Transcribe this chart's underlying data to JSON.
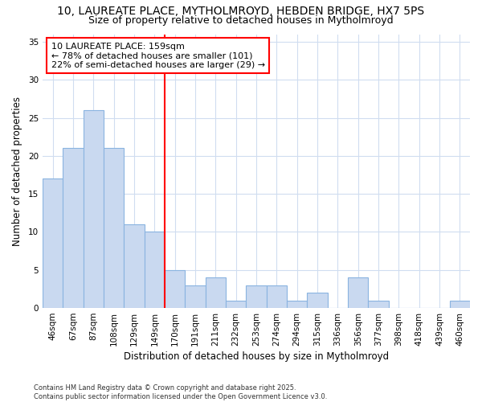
{
  "title1": "10, LAUREATE PLACE, MYTHOLMROYD, HEBDEN BRIDGE, HX7 5PS",
  "title2": "Size of property relative to detached houses in Mytholmroyd",
  "xlabel": "Distribution of detached houses by size in Mytholmroyd",
  "ylabel": "Number of detached properties",
  "footer": "Contains HM Land Registry data © Crown copyright and database right 2025.\nContains public sector information licensed under the Open Government Licence v3.0.",
  "bin_labels": [
    "46sqm",
    "67sqm",
    "87sqm",
    "108sqm",
    "129sqm",
    "149sqm",
    "170sqm",
    "191sqm",
    "211sqm",
    "232sqm",
    "253sqm",
    "274sqm",
    "294sqm",
    "315sqm",
    "336sqm",
    "356sqm",
    "377sqm",
    "398sqm",
    "418sqm",
    "439sqm",
    "460sqm"
  ],
  "bar_values": [
    17,
    21,
    26,
    21,
    11,
    10,
    5,
    3,
    4,
    1,
    3,
    3,
    1,
    2,
    0,
    4,
    1,
    0,
    0,
    0,
    1
  ],
  "bar_color": "#c9d9f0",
  "bar_edge_color": "#8ab4e0",
  "vline_x": 5.5,
  "vline_color": "red",
  "annotation_text": "10 LAUREATE PLACE: 159sqm\n← 78% of detached houses are smaller (101)\n22% of semi-detached houses are larger (29) →",
  "annotation_box_color": "white",
  "annotation_box_edge": "red",
  "ylim": [
    0,
    36
  ],
  "yticks": [
    0,
    5,
    10,
    15,
    20,
    25,
    30,
    35
  ],
  "bg_color": "#ffffff",
  "plot_bg_color": "#ffffff",
  "title_fontsize": 10,
  "title2_fontsize": 9,
  "axis_label_fontsize": 8.5,
  "tick_fontsize": 7.5,
  "annotation_fontsize": 8,
  "footer_fontsize": 6
}
